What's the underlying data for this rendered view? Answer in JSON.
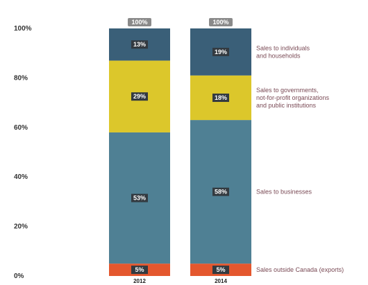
{
  "chart_data": {
    "type": "bar",
    "stacked": true,
    "categories": [
      "2012",
      "2014"
    ],
    "series": [
      {
        "name": "Sales outside Canada (exports)",
        "values": [
          5,
          5
        ],
        "labels": [
          "5%",
          "5%"
        ],
        "color": "#e4572e"
      },
      {
        "name": "Sales to businesses",
        "values": [
          53,
          58
        ],
        "labels": [
          "53%",
          "58%"
        ],
        "color": "#4f8094"
      },
      {
        "name": "Sales to governments, not-for-profit organizations and public institutions",
        "values": [
          29,
          18
        ],
        "labels": [
          "29%",
          "18%"
        ],
        "color": "#dcc72b"
      },
      {
        "name": "Sales to individuals and households",
        "values": [
          13,
          19
        ],
        "labels": [
          "13%",
          "19%"
        ],
        "color": "#3a5f78"
      }
    ],
    "totals": [
      "100%",
      "100%"
    ],
    "legend_lines": [
      [
        "Sales outside Canada (exports)"
      ],
      [
        "Sales to businesses"
      ],
      [
        "Sales to governments,",
        "not-for-profit organizations",
        "and public institutions"
      ],
      [
        "Sales to individuals",
        "and households"
      ]
    ],
    "ylim": [
      0,
      100
    ],
    "yticks": [
      0,
      20,
      40,
      60,
      80,
      100
    ],
    "ytick_labels": [
      "0%",
      "20%",
      "40%",
      "60%",
      "80%",
      "100%"
    ],
    "xlabel": "",
    "ylabel": "",
    "title": "",
    "grid": false,
    "legend_placement": "right, inline labels",
    "label_box_color": "#333a40",
    "total_box_color": "#8a8a8a"
  }
}
